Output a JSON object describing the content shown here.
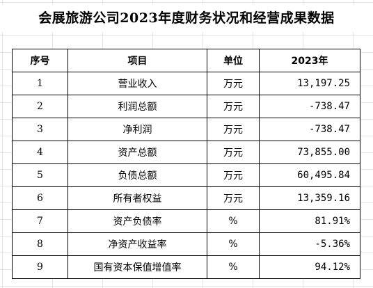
{
  "title": "会展旅游公司2023年度财务状况和经营成果数据",
  "table": {
    "headers": [
      "序号",
      "项目",
      "单位",
      "2023年"
    ],
    "rows": [
      {
        "index": "1",
        "item": "营业收入",
        "unit": "万元",
        "value": "13,197.25"
      },
      {
        "index": "2",
        "item": "利润总额",
        "unit": "万元",
        "value": "-738.47"
      },
      {
        "index": "3",
        "item": "净利润",
        "unit": "万元",
        "value": "-738.47"
      },
      {
        "index": "4",
        "item": "资产总额",
        "unit": "万元",
        "value": "73,855.00"
      },
      {
        "index": "5",
        "item": "负债总额",
        "unit": "万元",
        "value": "60,495.84"
      },
      {
        "index": "6",
        "item": "所有者权益",
        "unit": "万元",
        "value": "13,359.16"
      },
      {
        "index": "7",
        "item": "资产负债率",
        "unit": "%",
        "value": "81.91%"
      },
      {
        "index": "8",
        "item": "净资产收益率",
        "unit": "%",
        "value": "-5.36%"
      },
      {
        "index": "9",
        "item": "国有资本保值增值率",
        "unit": "%",
        "value": "94.12%"
      }
    ]
  }
}
